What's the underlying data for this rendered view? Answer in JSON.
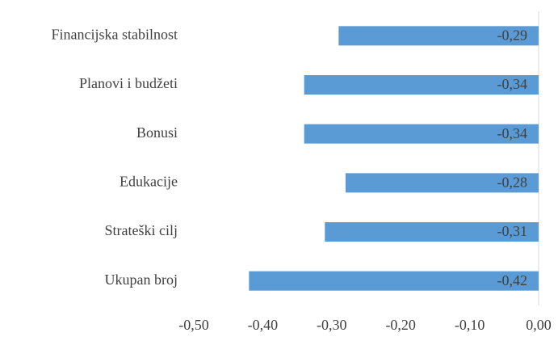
{
  "chart_data": {
    "type": "bar",
    "orientation": "horizontal",
    "categories": [
      "Financijska stabilnost",
      "Planovi i budžeti",
      "Bonusi",
      "Edukacije",
      "Strateški cilj",
      "Ukupan broj"
    ],
    "values": [
      -0.29,
      -0.34,
      -0.34,
      -0.28,
      -0.31,
      -0.42
    ],
    "value_labels": [
      "-0,29",
      "-0,34",
      "-0,34",
      "-0,28",
      "-0,31",
      "-0,42"
    ],
    "color": "#5b9bd5",
    "xlim": [
      -0.5,
      0
    ],
    "xticks": [
      {
        "value": -0.5,
        "label": "-0,50"
      },
      {
        "value": -0.4,
        "label": "-0,40"
      },
      {
        "value": -0.3,
        "label": "-0,30"
      },
      {
        "value": -0.2,
        "label": "-0,20"
      },
      {
        "value": -0.1,
        "label": "-0,10"
      },
      {
        "value": 0,
        "label": "0,00"
      }
    ],
    "grid": false
  }
}
